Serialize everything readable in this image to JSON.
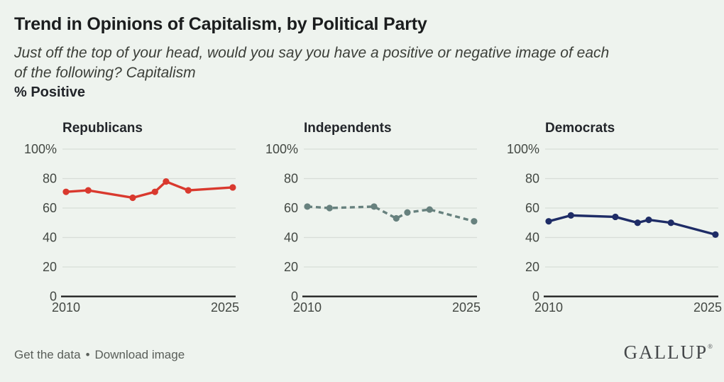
{
  "header": {
    "title": "Trend in Opinions of Capitalism, by Political Party",
    "subtitle_line1": "Just off the top of your head, would you say you have a positive or negative image of each",
    "subtitle_line2": "of the following? Capitalism",
    "measure_label": "% Positive"
  },
  "chart_data": {
    "type": "line",
    "layout": "small-multiples",
    "x": [
      2010,
      2012,
      2016,
      2018,
      2019,
      2021,
      2025
    ],
    "series": [
      {
        "name": "Republicans",
        "values": [
          71,
          72,
          67,
          71,
          78,
          72,
          74
        ],
        "color": "#d9392e",
        "style": "solid"
      },
      {
        "name": "Independents",
        "values": [
          61,
          60,
          61,
          53,
          57,
          59,
          51
        ],
        "color": "#67817e",
        "style": "dashed"
      },
      {
        "name": "Democrats",
        "values": [
          51,
          55,
          54,
          50,
          52,
          50,
          42
        ],
        "color": "#1e2c66",
        "style": "solid"
      }
    ],
    "ylabel": "% Positive",
    "ylim": [
      0,
      100
    ],
    "yticks": [
      0,
      20,
      40,
      60,
      80,
      100
    ],
    "ytick_labels": [
      "0",
      "20",
      "40",
      "60",
      "80",
      "100%"
    ],
    "xlim": [
      2010,
      2025
    ],
    "xtick_labels": [
      "2010",
      "2025"
    ],
    "grid": true,
    "legend": "none"
  },
  "colors": {
    "background": "#eef3ee",
    "gridline": "#d8ddd8",
    "axis": "#191919",
    "tick_text": "#434843",
    "republican_red": "#d9392e",
    "independent_gray": "#67817e",
    "democrat_navy": "#1e2c66"
  },
  "footer": {
    "links": [
      "Get the data",
      "Download image"
    ],
    "separator": "•",
    "logo": "GALLUP",
    "logo_mark": "®"
  }
}
